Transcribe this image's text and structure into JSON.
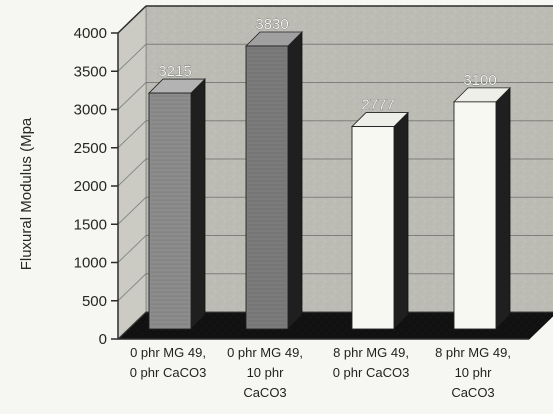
{
  "chart_data": {
    "type": "bar",
    "ylabel": "Fluxural Modulus (Mpa",
    "ylim": [
      0,
      4000
    ],
    "yticks": [
      0,
      500,
      1000,
      1500,
      2000,
      2500,
      3000,
      3500,
      4000
    ],
    "categories": [
      [
        "0 phr MG 49,",
        "0 phr CaCO3"
      ],
      [
        "0 phr MG 49,",
        "10 phr",
        "CaCO3"
      ],
      [
        "8 phr MG 49,",
        "0 phr CaCO3"
      ],
      [
        "8 phr MG 49,",
        "10 phr",
        "CaCO3"
      ]
    ],
    "values": [
      3215,
      3830,
      2777,
      3100
    ],
    "value_labels": [
      "3215",
      "3830",
      "2777",
      "3100"
    ],
    "grid": true,
    "style": {
      "bar_front_colors": [
        "#8d8d8d",
        "#7b7b7b",
        "#f8f8f3",
        "#f8f8f3"
      ],
      "bar_side_color": "#1f1f1f",
      "bar_top_colors": [
        "#b3b3b3",
        "#a0a0a0",
        "#efefe9",
        "#efefe9"
      ],
      "plot_fill": "#bdbdb6",
      "floor_fill": "#121212"
    }
  }
}
